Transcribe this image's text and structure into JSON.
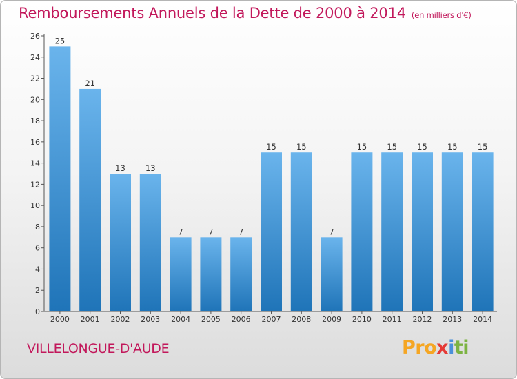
{
  "chart_data": {
    "type": "bar",
    "title": "Remboursements Annuels de la Dette de 2000 à 2014",
    "subtitle": "(en milliers d'€)",
    "categories": [
      "2000",
      "2001",
      "2002",
      "2003",
      "2004",
      "2005",
      "2006",
      "2007",
      "2008",
      "2009",
      "2010",
      "2011",
      "2012",
      "2013",
      "2014"
    ],
    "values": [
      25,
      21,
      13,
      13,
      7,
      7,
      7,
      15,
      15,
      7,
      15,
      15,
      15,
      15,
      15
    ],
    "ylim": [
      0,
      26
    ],
    "yticks": [
      0,
      2,
      4,
      6,
      8,
      10,
      12,
      14,
      16,
      18,
      20,
      22,
      24,
      26
    ],
    "grid": false,
    "colors": {
      "bar_light": "#6ab4ec",
      "bar_dark": "#1f74b8",
      "title": "#c2185b"
    }
  },
  "footer": {
    "commune": "VILLELONGUE-D'AUDE",
    "logo": [
      "Pro",
      "x",
      "i",
      "ti"
    ]
  }
}
